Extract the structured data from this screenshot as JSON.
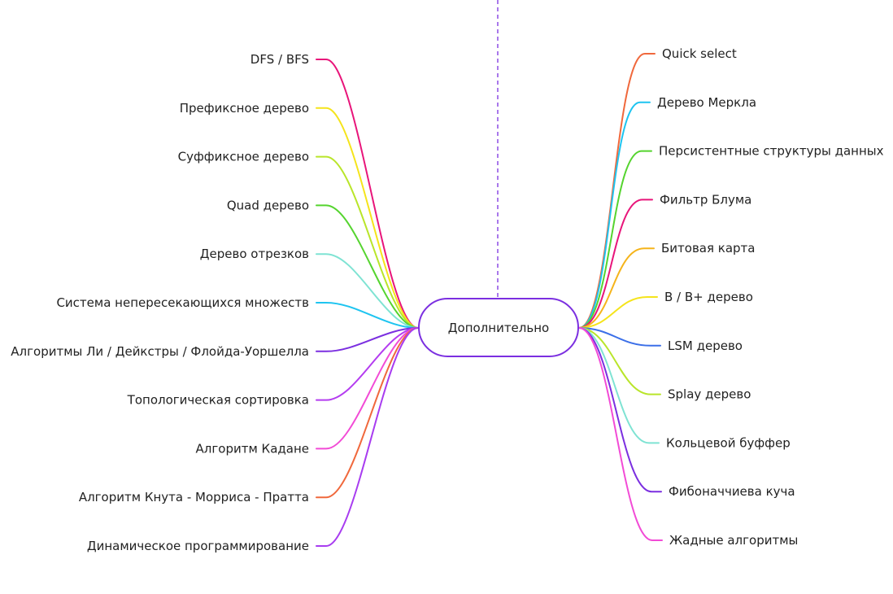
{
  "center": {
    "label": "Дополнительно",
    "border_color": "#7b2fe0",
    "guide_color": "#7b2fe0"
  },
  "left_branches": [
    {
      "label": "DFS / BFS",
      "color": "#e8157a"
    },
    {
      "label": "Префиксное дерево",
      "color": "#f5e41b"
    },
    {
      "label": "Суффиксное дерево",
      "color": "#b9e52a"
    },
    {
      "label": "Quad дерево",
      "color": "#55d42f"
    },
    {
      "label": "Дерево отрезков",
      "color": "#7fe3d3"
    },
    {
      "label": "Система непересекающихся множеств",
      "color": "#1ec4f0"
    },
    {
      "label": "Алгоритмы Ли / Дейкстры / Флойда-Уоршелла",
      "color": "#7b2fe0"
    },
    {
      "label": "Топологическая сортировка",
      "color": "#b43cf0"
    },
    {
      "label": "Алгоритм Кадане",
      "color": "#f24bd6"
    },
    {
      "label": "Алгоритм Кнута - Морриса - Пратта",
      "color": "#f0683c"
    },
    {
      "label": "Динамическое программирование",
      "color": "#a83cf0"
    }
  ],
  "right_branches": [
    {
      "label": "Quick select",
      "color": "#f0683c"
    },
    {
      "label": "Дерево Меркла",
      "color": "#1ec4f0"
    },
    {
      "label": "Персистентные структуры данных",
      "color": "#55d42f"
    },
    {
      "label": "Фильтр Блума",
      "color": "#e8157a"
    },
    {
      "label": "Битовая карта",
      "color": "#f5b41b"
    },
    {
      "label": "B / B+ дерево",
      "color": "#f5e41b"
    },
    {
      "label": "LSM дерево",
      "color": "#3b6fe8"
    },
    {
      "label": "Splay дерево",
      "color": "#b9e52a"
    },
    {
      "label": "Кольцевой буффер",
      "color": "#7fe3d3"
    },
    {
      "label": "Фибоначчиева куча",
      "color": "#7b2fe0"
    },
    {
      "label": "Жадные алгоритмы",
      "color": "#f24bd6"
    }
  ]
}
